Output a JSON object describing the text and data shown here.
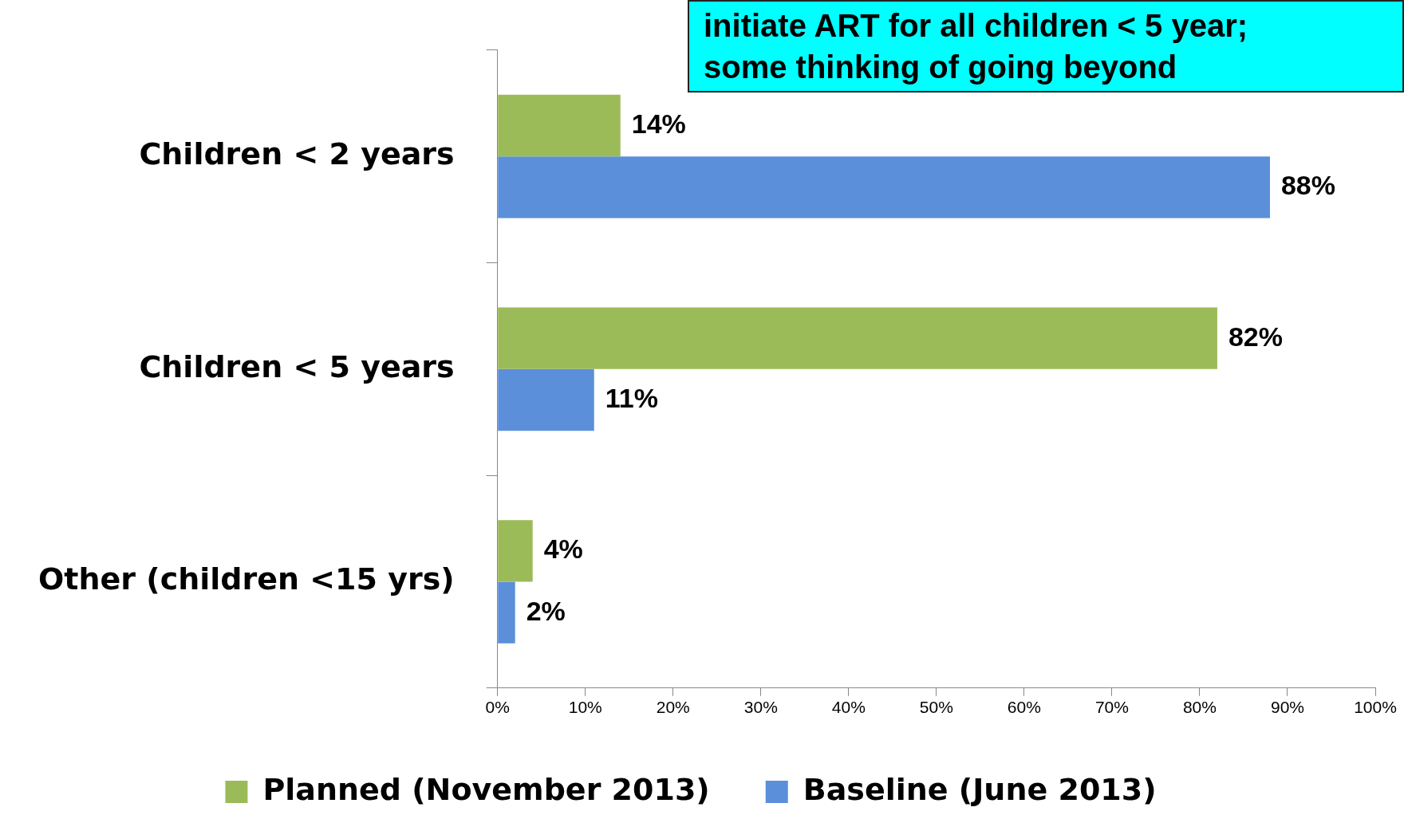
{
  "chart_data": {
    "type": "bar",
    "orientation": "horizontal",
    "categories": [
      "Children < 2 years",
      "Children < 5 years",
      "Other (children <15 yrs)"
    ],
    "series": [
      {
        "name": "Planned (November 2013)",
        "color": "#9bbb59",
        "values": [
          14,
          82,
          4
        ]
      },
      {
        "name": "Baseline (June 2013)",
        "color": "#5b8fd9",
        "values": [
          88,
          11,
          2
        ]
      }
    ],
    "xlim": [
      0,
      100
    ],
    "xticks": [
      {
        "value": 0,
        "label": "0%"
      },
      {
        "value": 10,
        "label": "10%"
      },
      {
        "value": 20,
        "label": "20%"
      },
      {
        "value": 30,
        "label": "30%"
      },
      {
        "value": 40,
        "label": "40%"
      },
      {
        "value": 50,
        "label": "50%"
      },
      {
        "value": 60,
        "label": "60%"
      },
      {
        "value": 70,
        "label": "70%"
      },
      {
        "value": 80,
        "label": "80%"
      },
      {
        "value": 90,
        "label": "90%"
      },
      {
        "value": 100,
        "label": "100%"
      }
    ],
    "value_labels": [
      [
        "14%",
        "82%",
        "4%"
      ],
      [
        "88%",
        "11%",
        "2%"
      ]
    ],
    "annotations": [
      "initiate ART for all children < 5 year;\nsome thinking of going beyond"
    ],
    "grid": false,
    "legend": "bottom"
  }
}
